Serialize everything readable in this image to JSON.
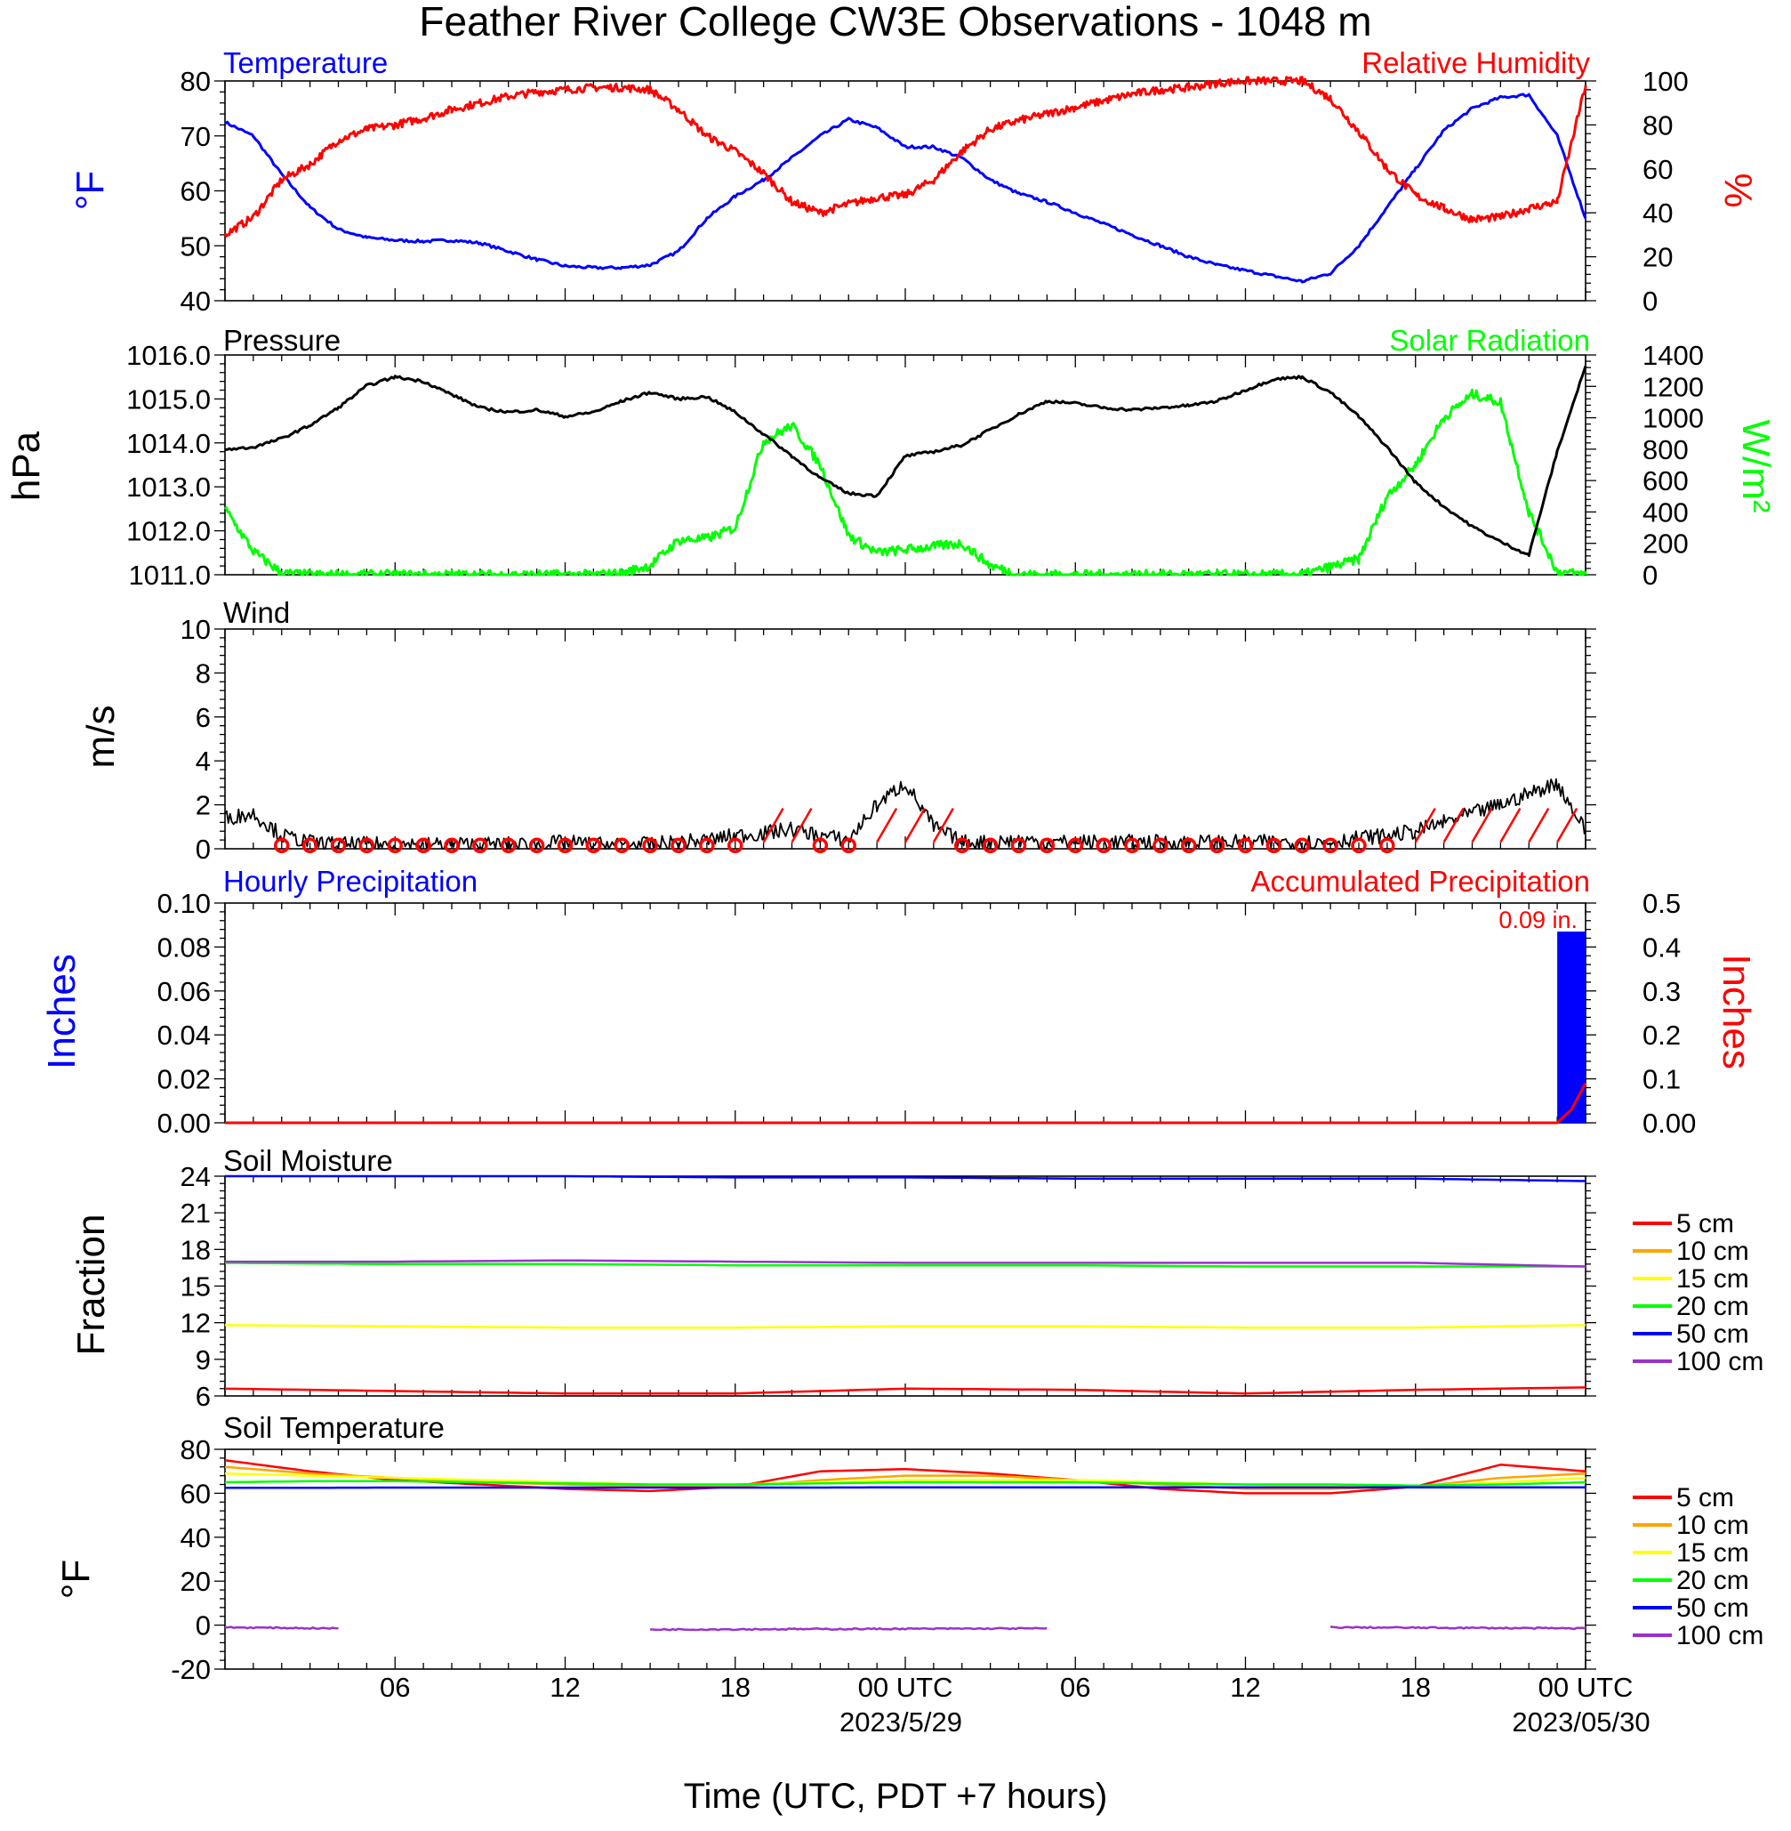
{
  "title": "Feather River College CW3E Observations - 1048 m",
  "xlabel": "Time (UTC, PDT +7 hours)",
  "x_ticks": [
    "06",
    "12",
    "18",
    "00 UTC",
    "06",
    "12",
    "18",
    "00 UTC"
  ],
  "x_dates": [
    "2023/5/29",
    "2023/05/30"
  ],
  "colors": {
    "temperature": "#0000ff",
    "humidity": "#ff0000",
    "pressure": "#000000",
    "solar": "#00ff00",
    "wind": "#000000",
    "wind_barb": "#ff0000",
    "hourly_precip": "#0000ff",
    "accum_precip": "#ff0000"
  },
  "panels": {
    "temp_rh": {
      "left_title": "Temperature",
      "right_title": "Relative Humidity",
      "left_ylabel": "°F",
      "right_ylabel": "%"
    },
    "pressure_solar": {
      "left_title": "Pressure",
      "right_title": "Solar Radiation",
      "left_ylabel": "hPa",
      "right_ylabel": "W/m²"
    },
    "wind": {
      "left_title": "Wind",
      "left_ylabel": "m/s"
    },
    "precip": {
      "left_title": "Hourly Precipitation",
      "right_title": "Accumulated Precipitation",
      "left_ylabel": "Inches",
      "right_ylabel": "Inches",
      "total_label": "0.09 in."
    },
    "soil_moisture": {
      "left_title": "Soil Moisture",
      "left_ylabel": "Fraction"
    },
    "soil_temp": {
      "left_title": "Soil Temperature",
      "left_ylabel": "°F"
    }
  },
  "legend": [
    {
      "label": "5 cm",
      "color": "#ff0000"
    },
    {
      "label": "10 cm",
      "color": "#ffa500"
    },
    {
      "label": "15 cm",
      "color": "#ffff00"
    },
    {
      "label": "20 cm",
      "color": "#00ff00"
    },
    {
      "label": "50 cm",
      "color": "#0000ff"
    },
    {
      "label": "100 cm",
      "color": "#9932cc"
    }
  ],
  "chart_data": [
    {
      "type": "line",
      "title": "Temperature / Relative Humidity",
      "x_hours": [
        0,
        1,
        2,
        3,
        4,
        5,
        6,
        7,
        8,
        9,
        10,
        11,
        12,
        13,
        14,
        15,
        16,
        17,
        18,
        19,
        20,
        21,
        22,
        23,
        24,
        25,
        26,
        27,
        28,
        29,
        30,
        31,
        32,
        33,
        34,
        35,
        36,
        37,
        38,
        39,
        40,
        41,
        42,
        43,
        44,
        45,
        46,
        47,
        48
      ],
      "y_left": {
        "ticks": [
          "40",
          "50",
          "60",
          "70",
          "80"
        ],
        "range": [
          40,
          80
        ]
      },
      "y_right": {
        "ticks": [
          "0",
          "20",
          "40",
          "60",
          "80",
          "100"
        ],
        "range": [
          0,
          100
        ]
      },
      "series": [
        {
          "name": "Temperature",
          "axis": "left",
          "color": "#0000ff",
          "values": [
            72.5,
            70,
            63,
            57,
            53,
            51.5,
            51,
            50.8,
            51,
            50.5,
            49,
            47.5,
            46.3,
            46,
            46,
            46.5,
            49,
            55,
            59,
            62,
            66,
            70,
            73,
            71.5,
            68,
            68,
            66,
            62,
            59.5,
            58,
            56,
            54,
            52,
            50,
            48,
            46.5,
            45.5,
            44.5,
            43.5,
            45,
            50,
            57,
            64,
            71,
            75,
            77,
            77.5,
            70,
            55
          ]
        },
        {
          "name": "Relative Humidity",
          "axis": "right",
          "color": "#ff0000",
          "values": [
            30,
            38,
            55,
            62,
            73,
            78,
            80,
            83,
            87,
            90,
            93,
            95,
            96,
            97,
            97,
            96,
            87,
            75,
            68,
            58,
            45,
            40,
            44,
            47,
            48,
            55,
            68,
            78,
            82,
            85,
            88,
            91,
            94,
            96,
            97,
            99,
            100,
            100,
            100,
            92,
            77,
            60,
            48,
            42,
            37,
            38,
            42,
            45,
            98
          ]
        }
      ]
    },
    {
      "type": "line",
      "title": "Pressure / Solar Radiation",
      "x_hours": [
        0,
        1,
        2,
        3,
        4,
        5,
        6,
        7,
        8,
        9,
        10,
        11,
        12,
        13,
        14,
        15,
        16,
        17,
        18,
        19,
        20,
        21,
        22,
        23,
        24,
        25,
        26,
        27,
        28,
        29,
        30,
        31,
        32,
        33,
        34,
        35,
        36,
        37,
        38,
        39,
        40,
        41,
        42,
        43,
        44,
        45,
        46,
        47,
        48
      ],
      "y_left": {
        "ticks": [
          "1011.0",
          "1012.0",
          "1013.0",
          "1014.0",
          "1015.0",
          "1016.0"
        ],
        "range": [
          1011,
          1016
        ]
      },
      "y_right": {
        "ticks": [
          "0",
          "200",
          "400",
          "600",
          "800",
          "1000",
          "1200",
          "1400"
        ],
        "range": [
          0,
          1400
        ]
      },
      "series": [
        {
          "name": "Pressure",
          "axis": "left",
          "color": "#000000",
          "values": [
            1013.85,
            1013.9,
            1014.1,
            1014.4,
            1014.8,
            1015.3,
            1015.5,
            1015.4,
            1015.1,
            1014.8,
            1014.7,
            1014.75,
            1014.6,
            1014.7,
            1014.95,
            1015.15,
            1015.0,
            1015.05,
            1014.7,
            1014.2,
            1013.7,
            1013.2,
            1012.85,
            1012.8,
            1013.7,
            1013.8,
            1013.95,
            1014.3,
            1014.65,
            1014.95,
            1014.9,
            1014.8,
            1014.75,
            1014.8,
            1014.85,
            1014.95,
            1015.2,
            1015.45,
            1015.5,
            1015.15,
            1014.6,
            1013.9,
            1013.1,
            1012.55,
            1012.1,
            1011.75,
            1011.45,
            1013.8,
            1015.75
          ]
        },
        {
          "name": "Solar Radiation",
          "axis": "right",
          "color": "#00ff00",
          "values": [
            420,
            150,
            10,
            0,
            0,
            0,
            0,
            0,
            0,
            0,
            0,
            0,
            0,
            0,
            10,
            60,
            220,
            230,
            300,
            850,
            950,
            700,
            250,
            140,
            160,
            180,
            200,
            60,
            0,
            0,
            0,
            0,
            0,
            0,
            0,
            0,
            0,
            0,
            0,
            50,
            100,
            500,
            700,
            1000,
            1150,
            1100,
            400,
            20,
            0
          ]
        }
      ]
    },
    {
      "type": "line",
      "title": "Wind",
      "x_hours": [
        0,
        1,
        2,
        3,
        4,
        5,
        6,
        7,
        8,
        9,
        10,
        11,
        12,
        13,
        14,
        15,
        16,
        17,
        18,
        19,
        20,
        21,
        22,
        23,
        24,
        25,
        26,
        27,
        28,
        29,
        30,
        31,
        32,
        33,
        34,
        35,
        36,
        37,
        38,
        39,
        40,
        41,
        42,
        43,
        44,
        45,
        46,
        47,
        48
      ],
      "y_left": {
        "ticks": [
          "0",
          "2",
          "4",
          "6",
          "8",
          "10"
        ],
        "range": [
          0,
          10
        ]
      },
      "series": [
        {
          "name": "Wind",
          "axis": "left",
          "color": "#000000",
          "values": [
            1.4,
            1.6,
            0.6,
            0.3,
            0.2,
            0.2,
            0.2,
            0.2,
            0.2,
            0.2,
            0.2,
            0.2,
            0.3,
            0.2,
            0.2,
            0.2,
            0.3,
            0.4,
            0.6,
            0.7,
            0.9,
            0.6,
            0.4,
            2.0,
            3.0,
            1.0,
            0.3,
            0.3,
            0.4,
            0.3,
            0.3,
            0.3,
            0.3,
            0.3,
            0.3,
            0.3,
            0.3,
            0.3,
            0.3,
            0.3,
            0.5,
            0.6,
            0.8,
            1.2,
            1.6,
            2.0,
            2.5,
            3.0,
            0.8
          ]
        }
      ]
    },
    {
      "type": "bar",
      "title": "Hourly / Accumulated Precipitation",
      "y_left": {
        "ticks": [
          "0.00",
          "0.02",
          "0.04",
          "0.06",
          "0.08",
          "0.10"
        ],
        "range": [
          0,
          0.1
        ]
      },
      "y_right": {
        "ticks": [
          "0.00",
          "0.1",
          "0.2",
          "0.3",
          "0.4",
          "0.5"
        ],
        "range": [
          0,
          0.5
        ]
      },
      "series": [
        {
          "name": "Hourly Precipitation",
          "axis": "left",
          "color": "#0000ff",
          "bars": [
            {
              "x_hour": 47,
              "value": 0.087
            }
          ]
        },
        {
          "name": "Accumulated Precipitation",
          "axis": "right",
          "color": "#ff0000",
          "x_hours": [
            0,
            47,
            47.5,
            48
          ],
          "values": [
            0,
            0,
            0.03,
            0.09
          ]
        }
      ]
    },
    {
      "type": "line",
      "title": "Soil Moisture",
      "x_hours": [
        0,
        6,
        12,
        18,
        24,
        30,
        36,
        42,
        48
      ],
      "y_left": {
        "ticks": [
          "6",
          "9",
          "12",
          "15",
          "18",
          "21",
          "24"
        ],
        "range": [
          6,
          24
        ]
      },
      "series": [
        {
          "name": "5 cm",
          "color": "#ff0000",
          "values": [
            6.6,
            6.4,
            6.2,
            6.2,
            6.6,
            6.5,
            6.2,
            6.5,
            6.7
          ]
        },
        {
          "name": "15 cm",
          "color": "#ffff00",
          "values": [
            11.8,
            11.7,
            11.6,
            11.6,
            11.7,
            11.7,
            11.6,
            11.6,
            11.8
          ]
        },
        {
          "name": "20 cm",
          "color": "#00ff00",
          "values": [
            16.9,
            16.8,
            16.8,
            16.7,
            16.7,
            16.7,
            16.6,
            16.6,
            16.6
          ]
        },
        {
          "name": "50 cm",
          "color": "#0000ff",
          "values": [
            24.0,
            24.0,
            24.0,
            23.9,
            23.9,
            23.8,
            23.8,
            23.8,
            23.6
          ]
        },
        {
          "name": "100 cm",
          "color": "#9932cc",
          "values": [
            17.0,
            17.0,
            17.1,
            17.0,
            16.9,
            16.9,
            16.9,
            16.9,
            16.6
          ]
        }
      ]
    },
    {
      "type": "line",
      "title": "Soil Temperature",
      "x_hours": [
        0,
        3,
        6,
        9,
        12,
        15,
        18,
        21,
        24,
        27,
        30,
        33,
        36,
        39,
        42,
        45,
        48
      ],
      "y_left": {
        "ticks": [
          "-20",
          "0",
          "20",
          "40",
          "60",
          "80"
        ],
        "range": [
          -20,
          80
        ]
      },
      "series": [
        {
          "name": "5 cm",
          "color": "#ff0000",
          "values": [
            75,
            70,
            66,
            64,
            62,
            61,
            63,
            70,
            71,
            69,
            66,
            62,
            60,
            60,
            63,
            73,
            70
          ]
        },
        {
          "name": "10 cm",
          "color": "#ffa500",
          "values": [
            72,
            69,
            67,
            65,
            64,
            63,
            63,
            66,
            68,
            68,
            66,
            64,
            62,
            62,
            63,
            67,
            69
          ]
        },
        {
          "name": "15 cm",
          "color": "#ffff00",
          "values": [
            69,
            68,
            67,
            66,
            65,
            64,
            64,
            65,
            66,
            66,
            66,
            65,
            64,
            63,
            63,
            65,
            67
          ]
        },
        {
          "name": "20 cm",
          "color": "#00ff00",
          "values": [
            65,
            65.5,
            65.5,
            65,
            64.5,
            64,
            64,
            64.5,
            65,
            65,
            65,
            64.5,
            64,
            64,
            63.5,
            64,
            65
          ]
        },
        {
          "name": "50 cm",
          "color": "#0000ff",
          "values": [
            62.5,
            62.5,
            62.6,
            62.6,
            62.6,
            62.6,
            62.6,
            62.6,
            62.7,
            62.7,
            62.7,
            62.7,
            62.7,
            62.7,
            62.7,
            62.7,
            62.7
          ]
        },
        {
          "name": "100 cm",
          "color": "#9932cc",
          "segments": [
            {
              "x_hours": [
                0,
                4
              ],
              "values": [
                -1,
                -1.5
              ]
            },
            {
              "x_hours": [
                15,
                29
              ],
              "values": [
                -2,
                -1.5
              ]
            },
            {
              "x_hours": [
                39,
                48
              ],
              "values": [
                -1,
                -1.5
              ]
            }
          ]
        }
      ]
    }
  ]
}
